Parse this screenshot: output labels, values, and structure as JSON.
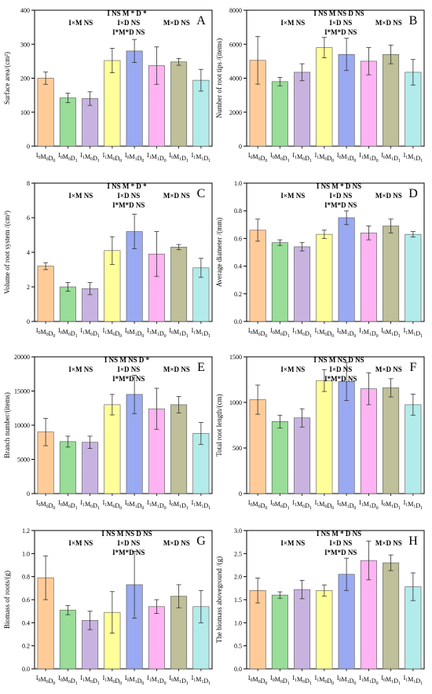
{
  "palette": [
    "#FFCC99",
    "#99DD99",
    "#C8B3E0",
    "#FFFF99",
    "#99AAF2",
    "#FFB3F2",
    "#BFBF99",
    "#B3EBEB"
  ],
  "chart_data": [
    {
      "type": "bar",
      "panel_label": "A",
      "ylabel": "Surface area/(cm²)",
      "ylim": [
        0,
        400
      ],
      "yticks": [
        0,
        100,
        200,
        300,
        400
      ],
      "ytick_labels": [
        "0",
        "100",
        "200",
        "300",
        "400"
      ],
      "categories": [
        {
          "t": "I",
          "s": "0",
          "t2": "M",
          "s2": "0",
          "t3": "D",
          "s3": "0"
        },
        {
          "t": "I",
          "s": "0",
          "t2": "M",
          "s2": "0",
          "t3": "D",
          "s3": "1"
        },
        {
          "t": "I",
          "s": "1",
          "t2": "M",
          "s2": "0",
          "t3": "D",
          "s3": "1"
        },
        {
          "t": "I",
          "s": "1",
          "t2": "M",
          "s2": "0",
          "t3": "D",
          "s3": "0"
        },
        {
          "t": "I",
          "s": "0",
          "t2": "M",
          "s2": "1",
          "t3": "D",
          "s3": "0"
        },
        {
          "t": "I",
          "s": "1",
          "t2": "M",
          "s2": "1",
          "t3": "D",
          "s3": "0"
        },
        {
          "t": "I",
          "s": "0",
          "t2": "M",
          "s2": "1",
          "t3": "D",
          "s3": "1"
        },
        {
          "t": "I",
          "s": "1",
          "t2": "M",
          "s2": "1",
          "t3": "D",
          "s3": "1"
        }
      ],
      "values": [
        200,
        142,
        140,
        252,
        280,
        237,
        248,
        194
      ],
      "errors": [
        18,
        14,
        20,
        36,
        34,
        55,
        10,
        32
      ],
      "stats": [
        [
          [
            "I",
            ""
          ],
          [
            "  NS  ",
            ""
          ],
          [
            "M * D *",
            ""
          ]
        ],
        [
          [
            "I×M NS",
            ""
          ],
          [
            "I×D NS",
            ""
          ],
          [
            "M×D NS",
            ""
          ]
        ],
        [
          [
            "I*M*D NS",
            ""
          ]
        ]
      ]
    },
    {
      "type": "bar",
      "panel_label": "B",
      "ylabel": "Number of root tips /(items)",
      "ylim": [
        0,
        8000
      ],
      "yticks": [
        0,
        2000,
        4000,
        6000,
        8000
      ],
      "ytick_labels": [
        "0",
        "2000",
        "4000",
        "6000",
        "8000"
      ],
      "categories": [
        {
          "t": "I",
          "s": "0",
          "t2": "M",
          "s2": "0",
          "t3": "D",
          "s3": "0"
        },
        {
          "t": "I",
          "s": "0",
          "t2": "M",
          "s2": "0",
          "t3": "D",
          "s3": "1"
        },
        {
          "t": "I",
          "s": "1",
          "t2": "M",
          "s2": "0",
          "t3": "D",
          "s3": "1"
        },
        {
          "t": "I",
          "s": "1",
          "t2": "M",
          "s2": "0",
          "t3": "D",
          "s3": "0"
        },
        {
          "t": "I",
          "s": "0",
          "t2": "M",
          "s2": "1",
          "t3": "D",
          "s3": "0"
        },
        {
          "t": "I",
          "s": "1",
          "t2": "M",
          "s2": "1",
          "t3": "D",
          "s3": "0"
        },
        {
          "t": "I",
          "s": "0",
          "t2": "M",
          "s2": "1",
          "t3": "D",
          "s3": "1"
        },
        {
          "t": "I",
          "s": "1",
          "t2": "M",
          "s2": "1",
          "t3": "D",
          "s3": "1"
        }
      ],
      "values": [
        5050,
        3800,
        4350,
        5800,
        5400,
        5000,
        5400,
        4350
      ],
      "errors": [
        1400,
        250,
        500,
        600,
        950,
        800,
        550,
        750
      ],
      "stats": [
        [
          [
            "I  NS  M NS  D NS",
            ""
          ]
        ],
        [
          [
            "I×M NS",
            ""
          ],
          [
            "I×D NS",
            ""
          ],
          [
            "M×D NS",
            ""
          ]
        ],
        [
          [
            "I*M*D NS",
            ""
          ]
        ]
      ]
    },
    {
      "type": "bar",
      "panel_label": "C",
      "ylabel": "Volume of root system /(cm³)",
      "ylim": [
        0,
        8
      ],
      "yticks": [
        0,
        2,
        4,
        6,
        8
      ],
      "ytick_labels": [
        "0",
        "2",
        "4",
        "6",
        "8"
      ],
      "categories": [
        {
          "t": "I",
          "s": "0",
          "t2": "M",
          "s2": "0",
          "t3": "D",
          "s3": "0"
        },
        {
          "t": "I",
          "s": "0",
          "t2": "M",
          "s2": "0",
          "t3": "D",
          "s3": "1"
        },
        {
          "t": "I",
          "s": "1",
          "t2": "M",
          "s2": "0",
          "t3": "D",
          "s3": "1"
        },
        {
          "t": "I",
          "s": "1",
          "t2": "M",
          "s2": "0",
          "t3": "D",
          "s3": "0"
        },
        {
          "t": "I",
          "s": "0",
          "t2": "M",
          "s2": "1",
          "t3": "D",
          "s3": "0"
        },
        {
          "t": "I",
          "s": "1",
          "t2": "M",
          "s2": "1",
          "t3": "D",
          "s3": "0"
        },
        {
          "t": "I",
          "s": "0",
          "t2": "M",
          "s2": "1",
          "t3": "D",
          "s3": "1"
        },
        {
          "t": "I",
          "s": "1",
          "t2": "M",
          "s2": "1",
          "t3": "D",
          "s3": "1"
        }
      ],
      "values": [
        3.2,
        2.0,
        1.9,
        4.1,
        5.2,
        3.9,
        4.3,
        3.1
      ],
      "errors": [
        0.2,
        0.25,
        0.35,
        0.8,
        1.0,
        1.3,
        0.15,
        0.55
      ],
      "stats": [
        [
          [
            "I  NS  M * D *",
            ""
          ]
        ],
        [
          [
            "I×M NS",
            ""
          ],
          [
            "I×D NS",
            ""
          ],
          [
            "M×D NS",
            ""
          ]
        ],
        [
          [
            "I*M*D NS",
            ""
          ]
        ]
      ]
    },
    {
      "type": "bar",
      "panel_label": "D",
      "ylabel": "Average diameter /(mm)",
      "ylim": [
        0,
        1.0
      ],
      "yticks": [
        0,
        0.2,
        0.4,
        0.6,
        0.8,
        1.0
      ],
      "ytick_labels": [
        "0.0",
        "0.2",
        "0.4",
        "0.6",
        "0.8",
        "1.0"
      ],
      "categories": [
        {
          "t": "I",
          "s": "0",
          "t2": "M",
          "s2": "0",
          "t3": "D",
          "s3": "0"
        },
        {
          "t": "I",
          "s": "0",
          "t2": "M",
          "s2": "0",
          "t3": "D",
          "s3": "1"
        },
        {
          "t": "I",
          "s": "1",
          "t2": "M",
          "s2": "0",
          "t3": "D",
          "s3": "1"
        },
        {
          "t": "I",
          "s": "1",
          "t2": "M",
          "s2": "0",
          "t3": "D",
          "s3": "0"
        },
        {
          "t": "I",
          "s": "0",
          "t2": "M",
          "s2": "1",
          "t3": "D",
          "s3": "0"
        },
        {
          "t": "I",
          "s": "1",
          "t2": "M",
          "s2": "1",
          "t3": "D",
          "s3": "0"
        },
        {
          "t": "I",
          "s": "0",
          "t2": "M",
          "s2": "1",
          "t3": "D",
          "s3": "1"
        },
        {
          "t": "I",
          "s": "1",
          "t2": "M",
          "s2": "1",
          "t3": "D",
          "s3": "1"
        }
      ],
      "values": [
        0.66,
        0.57,
        0.54,
        0.63,
        0.75,
        0.64,
        0.69,
        0.63
      ],
      "errors": [
        0.08,
        0.02,
        0.03,
        0.03,
        0.05,
        0.05,
        0.05,
        0.02
      ],
      "stats": [
        [
          [
            "I  NS  M * D NS",
            ""
          ]
        ],
        [
          [
            "I×M NS",
            ""
          ],
          [
            "I×D NS",
            ""
          ],
          [
            "M×D NS",
            ""
          ]
        ],
        [
          [
            "I*M*D NS",
            ""
          ]
        ]
      ]
    },
    {
      "type": "bar",
      "panel_label": "E",
      "ylabel": "Branch number/(items)",
      "ylim": [
        0,
        20000
      ],
      "yticks": [
        0,
        5000,
        10000,
        15000,
        20000
      ],
      "ytick_labels": [
        "0",
        "5000",
        "10000",
        "15000",
        "20000"
      ],
      "categories": [
        {
          "t": "I",
          "s": "0",
          "t2": "M",
          "s2": "0",
          "t3": "D",
          "s3": "0"
        },
        {
          "t": "I",
          "s": "0",
          "t2": "M",
          "s2": "0",
          "t3": "D",
          "s3": "1"
        },
        {
          "t": "I",
          "s": "1",
          "t2": "M",
          "s2": "0",
          "t3": "D",
          "s3": "1"
        },
        {
          "t": "I",
          "s": "1",
          "t2": "M",
          "s2": "0",
          "t3": "D",
          "s3": "0"
        },
        {
          "t": "I",
          "s": "0",
          "t2": "M",
          "s2": "1",
          "t3": "D",
          "s3": "0"
        },
        {
          "t": "I",
          "s": "1",
          "t2": "M",
          "s2": "1",
          "t3": "D",
          "s3": "0"
        },
        {
          "t": "I",
          "s": "0",
          "t2": "M",
          "s2": "1",
          "t3": "D",
          "s3": "1"
        },
        {
          "t": "I",
          "s": "1",
          "t2": "M",
          "s2": "1",
          "t3": "D",
          "s3": "1"
        }
      ],
      "values": [
        9000,
        7600,
        7500,
        13000,
        14500,
        12400,
        13000,
        8800
      ],
      "errors": [
        2000,
        800,
        900,
        1500,
        2800,
        3000,
        1200,
        1600
      ],
      "stats": [
        [
          [
            "I  NS  M NS  D *",
            ""
          ]
        ],
        [
          [
            "I×M NS",
            ""
          ],
          [
            "I×D NS",
            ""
          ],
          [
            "M×D NS",
            ""
          ]
        ],
        [
          [
            "I*M*D NS",
            ""
          ]
        ]
      ]
    },
    {
      "type": "bar",
      "panel_label": "F",
      "ylabel": "Total root length/(cm)",
      "ylim": [
        0,
        1500
      ],
      "yticks": [
        0,
        500,
        1000,
        1500
      ],
      "ytick_labels": [
        "0",
        "500",
        "1000",
        "1500"
      ],
      "categories": [
        {
          "t": "I",
          "s": "0",
          "t2": "M",
          "s2": "0",
          "t3": "D",
          "s3": "0"
        },
        {
          "t": "I",
          "s": "0",
          "t2": "M",
          "s2": "0",
          "t3": "D",
          "s3": "1"
        },
        {
          "t": "I",
          "s": "1",
          "t2": "M",
          "s2": "0",
          "t3": "D",
          "s3": "1"
        },
        {
          "t": "I",
          "s": "1",
          "t2": "M",
          "s2": "0",
          "t3": "D",
          "s3": "0"
        },
        {
          "t": "I",
          "s": "0",
          "t2": "M",
          "s2": "1",
          "t3": "D",
          "s3": "0"
        },
        {
          "t": "I",
          "s": "1",
          "t2": "M",
          "s2": "1",
          "t3": "D",
          "s3": "0"
        },
        {
          "t": "I",
          "s": "0",
          "t2": "M",
          "s2": "1",
          "t3": "D",
          "s3": "1"
        },
        {
          "t": "I",
          "s": "1",
          "t2": "M",
          "s2": "1",
          "t3": "D",
          "s3": "1"
        }
      ],
      "values": [
        1030,
        790,
        830,
        1240,
        1230,
        1150,
        1160,
        975
      ],
      "errors": [
        160,
        70,
        100,
        120,
        210,
        175,
        100,
        115
      ],
      "stats": [
        [
          [
            "I  NS  M NS  D NS",
            ""
          ]
        ],
        [
          [
            "I×M NS",
            ""
          ],
          [
            "I×D NS",
            ""
          ],
          [
            "M×D NS",
            ""
          ]
        ],
        [
          [
            "I*M*D NS",
            ""
          ]
        ]
      ]
    },
    {
      "type": "bar",
      "panel_label": "G",
      "ylabel": "Biomass of roots/(g)",
      "ylim": [
        0,
        1.2
      ],
      "yticks": [
        0,
        0.2,
        0.4,
        0.6,
        0.8,
        1.0,
        1.2
      ],
      "ytick_labels": [
        "0.0",
        "0.2",
        "0.4",
        "0.6",
        "0.8",
        "1.0",
        "1.2"
      ],
      "categories": [
        {
          "t": "I",
          "s": "0",
          "t2": "M",
          "s2": "0",
          "t3": "D",
          "s3": "0"
        },
        {
          "t": "I",
          "s": "0",
          "t2": "M",
          "s2": "0",
          "t3": "D",
          "s3": "1"
        },
        {
          "t": "I",
          "s": "1",
          "t2": "M",
          "s2": "0",
          "t3": "D",
          "s3": "1"
        },
        {
          "t": "I",
          "s": "1",
          "t2": "M",
          "s2": "0",
          "t3": "D",
          "s3": "0"
        },
        {
          "t": "I",
          "s": "0",
          "t2": "M",
          "s2": "1",
          "t3": "D",
          "s3": "0"
        },
        {
          "t": "I",
          "s": "1",
          "t2": "M",
          "s2": "1",
          "t3": "D",
          "s3": "0"
        },
        {
          "t": "I",
          "s": "0",
          "t2": "M",
          "s2": "1",
          "t3": "D",
          "s3": "1"
        },
        {
          "t": "I",
          "s": "1",
          "t2": "M",
          "s2": "1",
          "t3": "D",
          "s3": "1"
        }
      ],
      "values": [
        0.79,
        0.51,
        0.42,
        0.49,
        0.73,
        0.54,
        0.63,
        0.54
      ],
      "errors": [
        0.19,
        0.04,
        0.08,
        0.18,
        0.29,
        0.06,
        0.1,
        0.14
      ],
      "stats": [
        [
          [
            "I  NS  M NS  D NS",
            ""
          ]
        ],
        [
          [
            "I×M NS",
            ""
          ],
          [
            "I×D NS",
            ""
          ],
          [
            "M×D NS",
            ""
          ]
        ],
        [
          [
            "I*M*D NS",
            ""
          ]
        ]
      ]
    },
    {
      "type": "bar",
      "panel_label": "H",
      "ylabel": "The biomass aboveground /(g)",
      "ylim": [
        0,
        3.0
      ],
      "yticks": [
        0,
        0.5,
        1.0,
        1.5,
        2.0,
        2.5,
        3.0
      ],
      "ytick_labels": [
        "0.0",
        "0.5",
        "1.0",
        "1.5",
        "2.0",
        "2.5",
        "3.0"
      ],
      "categories": [
        {
          "t": "I",
          "s": "0",
          "t2": "M",
          "s2": "0",
          "t3": "D",
          "s3": "0"
        },
        {
          "t": "I",
          "s": "0",
          "t2": "M",
          "s2": "0",
          "t3": "D",
          "s3": "1"
        },
        {
          "t": "I",
          "s": "1",
          "t2": "M",
          "s2": "0",
          "t3": "D",
          "s3": "1"
        },
        {
          "t": "I",
          "s": "1",
          "t2": "M",
          "s2": "0",
          "t3": "D",
          "s3": "0"
        },
        {
          "t": "I",
          "s": "0",
          "t2": "M",
          "s2": "1",
          "t3": "D",
          "s3": "0"
        },
        {
          "t": "I",
          "s": "1",
          "t2": "M",
          "s2": "1",
          "t3": "D",
          "s3": "0"
        },
        {
          "t": "I",
          "s": "0",
          "t2": "M",
          "s2": "1",
          "t3": "D",
          "s3": "1"
        },
        {
          "t": "I",
          "s": "1",
          "t2": "M",
          "s2": "1",
          "t3": "D",
          "s3": "1"
        }
      ],
      "values": [
        1.7,
        1.6,
        1.72,
        1.7,
        2.05,
        2.35,
        2.3,
        1.78
      ],
      "errors": [
        0.27,
        0.07,
        0.2,
        0.12,
        0.35,
        0.42,
        0.17,
        0.3
      ],
      "stats": [
        [
          [
            "I  NS  M * D NS",
            ""
          ]
        ],
        [
          [
            "I×M NS",
            ""
          ],
          [
            "I×D NS",
            ""
          ],
          [
            "M×D NS",
            ""
          ]
        ],
        [
          [
            "I*M*D NS",
            ""
          ]
        ]
      ]
    }
  ]
}
